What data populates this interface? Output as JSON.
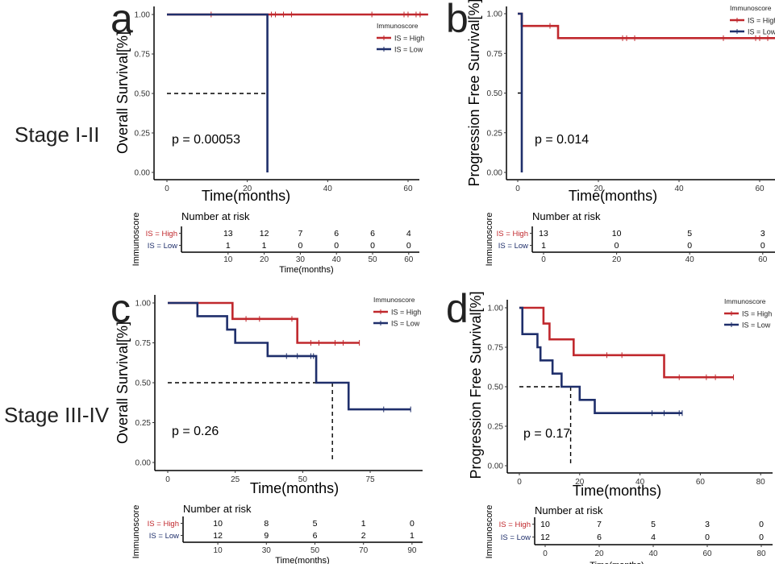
{
  "row_labels": [
    "Stage I-II",
    "Stage III-IV"
  ],
  "colors": {
    "high": "#c0282d",
    "low": "#1f2f6b",
    "axis": "#000000",
    "median": "#000000"
  },
  "chart_data": [
    {
      "panel_label": "a",
      "type": "line",
      "ylabel": "Overall Survival[%]",
      "xlabel": "Time(months)",
      "xlim": [
        0,
        63
      ],
      "ylim": [
        0,
        1
      ],
      "xticks": [
        "0",
        "20",
        "40",
        "60"
      ],
      "xtick_values": [
        0,
        20,
        40,
        60
      ],
      "yticks": [
        "0.00",
        "0.25",
        "0.50",
        "0.75",
        "1.00"
      ],
      "ytick_values": [
        0,
        0.25,
        0.5,
        0.75,
        1
      ],
      "p_value": "p = 0.00053",
      "legend": {
        "title": "Immunoscore",
        "entries": [
          "IS = High",
          "IS = Low"
        ],
        "placement": "top-right"
      },
      "series": [
        {
          "name": "IS = High",
          "color": "#c0282d",
          "steps": [
            [
              0,
              1
            ]
          ],
          "end": 65,
          "censors": [
            11,
            26,
            27,
            29,
            31,
            51,
            59,
            60,
            62,
            63,
            65
          ]
        },
        {
          "name": "IS = Low",
          "color": "#1f2f6b",
          "steps": [
            [
              0,
              1
            ],
            [
              25,
              0
            ]
          ],
          "end": 25,
          "censors": []
        }
      ],
      "median": {
        "x": 25,
        "y": 0.5
      },
      "risk_table": {
        "title": "Number at risk",
        "ylabel": "Immunoscore",
        "xlabel": "Time(months)",
        "times": [
          10,
          20,
          30,
          40,
          50,
          60
        ],
        "tick_labels": [
          "10",
          "20",
          "30",
          "40",
          "50",
          "60"
        ],
        "rows": [
          {
            "name": "IS = High",
            "color": "#c0282d",
            "values": [
              "13",
              "12",
              "7",
              "6",
              "6",
              "4"
            ]
          },
          {
            "name": "IS = Low",
            "color": "#1f2f6b",
            "values": [
              "1",
              "1",
              "0",
              "0",
              "0",
              "0"
            ]
          }
        ]
      }
    },
    {
      "panel_label": "b",
      "type": "line",
      "ylabel": "Progression Free Survival[%]",
      "xlabel": "Time(months)",
      "xlim": [
        0,
        63.8
      ],
      "ylim": [
        0,
        1
      ],
      "xticks": [
        "0",
        "20",
        "40",
        "60"
      ],
      "xtick_values": [
        0,
        20,
        40,
        60
      ],
      "yticks": [
        "0.00",
        "0.25",
        "0.50",
        "0.75",
        "1.00"
      ],
      "ytick_values": [
        0,
        0.25,
        0.5,
        0.75,
        1
      ],
      "p_value": "p = 0.014",
      "legend": {
        "title": "Immunoscore",
        "entries": [
          "IS = High",
          "IS = Low"
        ],
        "placement": "top-right"
      },
      "series": [
        {
          "name": "IS = High",
          "color": "#c0282d",
          "steps": [
            [
              0,
              1
            ],
            [
              1,
              0.923
            ],
            [
              10,
              0.846
            ]
          ],
          "end": 63.8,
          "censors": [
            8,
            26,
            27,
            29,
            51,
            59,
            60,
            62
          ]
        },
        {
          "name": "IS = Low",
          "color": "#1f2f6b",
          "steps": [
            [
              0,
              1
            ],
            [
              1,
              0
            ]
          ],
          "end": 1,
          "censors": []
        }
      ],
      "median": {
        "x": 1,
        "y": 0.5
      },
      "risk_table": {
        "title": "Number at risk",
        "ylabel": "Immunoscore",
        "xlabel": "",
        "times": [
          0,
          20,
          40,
          60
        ],
        "tick_labels": [
          "0",
          "20",
          "40",
          "60"
        ],
        "rows": [
          {
            "name": "IS = High",
            "color": "#c0282d",
            "values": [
              "13",
              "10",
              "5",
              "3"
            ]
          },
          {
            "name": "IS = Low",
            "color": "#1f2f6b",
            "values": [
              "1",
              "0",
              "0",
              "0"
            ]
          }
        ]
      }
    },
    {
      "panel_label": "c",
      "type": "line",
      "ylabel": "Overall Survival[%]",
      "xlabel": "Time(months)",
      "xlim": [
        0,
        94
      ],
      "ylim": [
        0,
        1
      ],
      "xticks": [
        "0",
        "25",
        "50",
        "75"
      ],
      "xtick_values": [
        0,
        25,
        50,
        75
      ],
      "yticks": [
        "0.00",
        "0.25",
        "0.50",
        "0.75",
        "1.00"
      ],
      "ytick_values": [
        0,
        0.25,
        0.5,
        0.75,
        1
      ],
      "p_value": "p = 0.26",
      "legend": {
        "title": "Immunoscore",
        "entries": [
          "IS = High",
          "IS = Low"
        ],
        "placement": "top-right"
      },
      "series": [
        {
          "name": "IS = High",
          "color": "#c0282d",
          "steps": [
            [
              0,
              1
            ],
            [
              24,
              0.9
            ],
            [
              48,
              0.75
            ]
          ],
          "end": 71,
          "censors": [
            29,
            34,
            46,
            53,
            56,
            62,
            65,
            71
          ]
        },
        {
          "name": "IS = Low",
          "color": "#1f2f6b",
          "steps": [
            [
              0,
              1
            ],
            [
              11,
              0.917
            ],
            [
              22,
              0.833
            ],
            [
              25,
              0.75
            ],
            [
              37,
              0.667
            ],
            [
              55,
              0.5
            ],
            [
              67,
              0.333
            ]
          ],
          "end": 90,
          "censors": [
            44,
            48,
            53,
            54,
            80,
            90
          ]
        }
      ],
      "median": {
        "x": 61,
        "y": 0.5
      },
      "risk_table": {
        "title": "Number at risk",
        "ylabel": "Immunoscore",
        "xlabel": "Time(months)",
        "times": [
          10,
          30,
          50,
          70,
          90
        ],
        "tick_labels": [
          "10",
          "30",
          "50",
          "70",
          "90"
        ],
        "rows": [
          {
            "name": "IS = High",
            "color": "#c0282d",
            "values": [
              "10",
              "8",
              "5",
              "1",
              "0"
            ]
          },
          {
            "name": "IS = Low",
            "color": "#1f2f6b",
            "values": [
              "12",
              "9",
              "6",
              "2",
              "1"
            ]
          }
        ]
      }
    },
    {
      "panel_label": "d",
      "type": "line",
      "ylabel": "Progression Free Survival[%]",
      "xlabel": "Time(months)",
      "xlim": [
        0,
        84
      ],
      "ylim": [
        0,
        1
      ],
      "xticks": [
        "0",
        "20",
        "40",
        "60",
        "80"
      ],
      "xtick_values": [
        0,
        20,
        40,
        60,
        80
      ],
      "yticks": [
        "0.00",
        "0.25",
        "0.50",
        "0.75",
        "1.00"
      ],
      "ytick_values": [
        0,
        0.25,
        0.5,
        0.75,
        1
      ],
      "p_value": "p = 0.17",
      "legend": {
        "title": "Immunoscore",
        "entries": [
          "IS = High",
          "IS = Low"
        ],
        "placement": "top-right"
      },
      "series": [
        {
          "name": "IS = High",
          "color": "#c0282d",
          "steps": [
            [
              0,
              1
            ],
            [
              8,
              0.9
            ],
            [
              10,
              0.8
            ],
            [
              18,
              0.7
            ],
            [
              48,
              0.56
            ]
          ],
          "end": 71,
          "censors": [
            29,
            34,
            53,
            62,
            65,
            71
          ]
        },
        {
          "name": "IS = Low",
          "color": "#1f2f6b",
          "steps": [
            [
              0,
              1
            ],
            [
              1,
              0.833
            ],
            [
              6,
              0.75
            ],
            [
              7,
              0.667
            ],
            [
              11,
              0.583
            ],
            [
              14,
              0.5
            ],
            [
              20,
              0.417
            ],
            [
              25,
              0.333
            ]
          ],
          "end": 54,
          "censors": [
            44,
            48,
            53,
            54
          ]
        }
      ],
      "median": {
        "x": 17,
        "y": 0.5
      },
      "risk_table": {
        "title": "Number at risk",
        "ylabel": "Immunoscore",
        "xlabel": "Time(months)",
        "times": [
          0,
          20,
          40,
          60,
          80
        ],
        "tick_labels": [
          "0",
          "20",
          "40",
          "60",
          "80"
        ],
        "rows": [
          {
            "name": "IS = High",
            "color": "#c0282d",
            "values": [
              "10",
              "7",
              "5",
              "3",
              "0"
            ]
          },
          {
            "name": "IS = Low",
            "color": "#1f2f6b",
            "values": [
              "12",
              "6",
              "4",
              "0",
              "0"
            ]
          }
        ]
      }
    }
  ]
}
